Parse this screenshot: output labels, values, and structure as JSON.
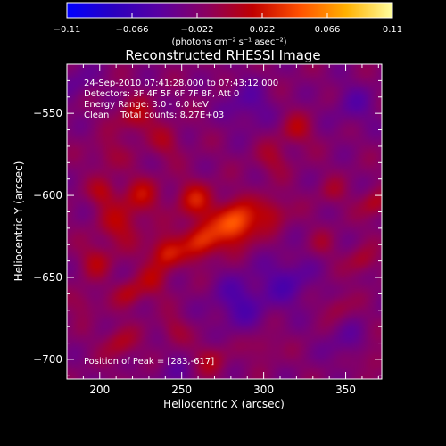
{
  "chart_data": {
    "type": "heatmap",
    "title": "Reconstructed RHESSI Image",
    "annotations": [
      "24-Sep-2010 07:41:28.000 to 07:43:12.000",
      "Detectors: 3F 4F 5F 6F 7F 8F, Att 0",
      "Energy Range: 3.0 - 6.0 keV",
      "Clean    Total counts: 8.27E+03"
    ],
    "peak_label": "Position of Peak = [283,-617]",
    "peak": {
      "x": 283,
      "y": -617
    },
    "xlabel": "Heliocentric X (arcsec)",
    "ylabel": "Heliocentric Y (arcsec)",
    "xlim": [
      180,
      372
    ],
    "ylim": [
      -712,
      -520
    ],
    "xticks": [
      {
        "value": 200,
        "label": "200"
      },
      {
        "value": 250,
        "label": "250"
      },
      {
        "value": 300,
        "label": "300"
      },
      {
        "value": 350,
        "label": "350"
      }
    ],
    "yticks": [
      {
        "value": -550,
        "label": "−550"
      },
      {
        "value": -600,
        "label": "−600"
      },
      {
        "value": -650,
        "label": "−650"
      },
      {
        "value": -700,
        "label": "−700"
      }
    ],
    "colorbar": {
      "range": [
        -0.11,
        0.11
      ],
      "ticks": [
        {
          "value": -0.11,
          "label": "−0.11"
        },
        {
          "value": -0.066,
          "label": "−0.066"
        },
        {
          "value": -0.022,
          "label": "−0.022"
        },
        {
          "value": 0.022,
          "label": "0.022"
        },
        {
          "value": 0.066,
          "label": "0.066"
        },
        {
          "value": 0.11,
          "label": "0.11"
        }
      ],
      "unit_label": "(photons cm⁻² s⁻¹ asec⁻²)",
      "colormap": [
        "#0000ff",
        "#2a00c0",
        "#5a00a0",
        "#8a0060",
        "#c00000",
        "#ff5000",
        "#ffb000",
        "#ffffa0"
      ]
    },
    "blobs": [
      {
        "x": 283,
        "y": -617,
        "amp": 0.075,
        "sigma": 9
      },
      {
        "x": 262,
        "y": -628,
        "amp": 0.055,
        "sigma": 8
      },
      {
        "x": 240,
        "y": -635,
        "amp": 0.05,
        "sigma": 7
      },
      {
        "x": 258,
        "y": -603,
        "amp": 0.042,
        "sigma": 8
      },
      {
        "x": 305,
        "y": -610,
        "amp": 0.032,
        "sigma": 7
      },
      {
        "x": 225,
        "y": -600,
        "amp": 0.034,
        "sigma": 8
      },
      {
        "x": 212,
        "y": -618,
        "amp": 0.032,
        "sigma": 9
      },
      {
        "x": 202,
        "y": -598,
        "amp": 0.03,
        "sigma": 6
      },
      {
        "x": 198,
        "y": -640,
        "amp": 0.028,
        "sigma": 7
      },
      {
        "x": 222,
        "y": -552,
        "amp": 0.032,
        "sigma": 8
      },
      {
        "x": 240,
        "y": -568,
        "amp": 0.022,
        "sigma": 7
      },
      {
        "x": 205,
        "y": -575,
        "amp": 0.02,
        "sigma": 7
      },
      {
        "x": 232,
        "y": -652,
        "amp": 0.026,
        "sigma": 7
      },
      {
        "x": 218,
        "y": -660,
        "amp": 0.03,
        "sigma": 6
      },
      {
        "x": 190,
        "y": -665,
        "amp": 0.018,
        "sigma": 6
      },
      {
        "x": 212,
        "y": -690,
        "amp": 0.028,
        "sigma": 7
      },
      {
        "x": 245,
        "y": -682,
        "amp": 0.02,
        "sigma": 6
      },
      {
        "x": 268,
        "y": -700,
        "amp": 0.025,
        "sigma": 7
      },
      {
        "x": 300,
        "y": -692,
        "amp": 0.02,
        "sigma": 6
      },
      {
        "x": 320,
        "y": -560,
        "amp": 0.028,
        "sigma": 7
      },
      {
        "x": 305,
        "y": -578,
        "amp": 0.022,
        "sigma": 7
      },
      {
        "x": 342,
        "y": -598,
        "amp": 0.018,
        "sigma": 6
      },
      {
        "x": 368,
        "y": -605,
        "amp": 0.03,
        "sigma": 6
      },
      {
        "x": 360,
        "y": -640,
        "amp": 0.026,
        "sigma": 6
      },
      {
        "x": 335,
        "y": -630,
        "amp": 0.015,
        "sigma": 6
      },
      {
        "x": 345,
        "y": -668,
        "amp": 0.02,
        "sigma": 6
      },
      {
        "x": 366,
        "y": -700,
        "amp": 0.022,
        "sigma": 6
      },
      {
        "x": 285,
        "y": -665,
        "amp": -0.03,
        "sigma": 12
      },
      {
        "x": 315,
        "y": -652,
        "amp": -0.028,
        "sigma": 11
      },
      {
        "x": 290,
        "y": -545,
        "amp": -0.024,
        "sigma": 10
      },
      {
        "x": 355,
        "y": -545,
        "amp": -0.02,
        "sigma": 10
      },
      {
        "x": 350,
        "y": -690,
        "amp": -0.018,
        "sigma": 9
      },
      {
        "x": 185,
        "y": -530,
        "amp": -0.018,
        "sigma": 8
      },
      {
        "x": 245,
        "y": -710,
        "amp": -0.016,
        "sigma": 8
      }
    ]
  }
}
